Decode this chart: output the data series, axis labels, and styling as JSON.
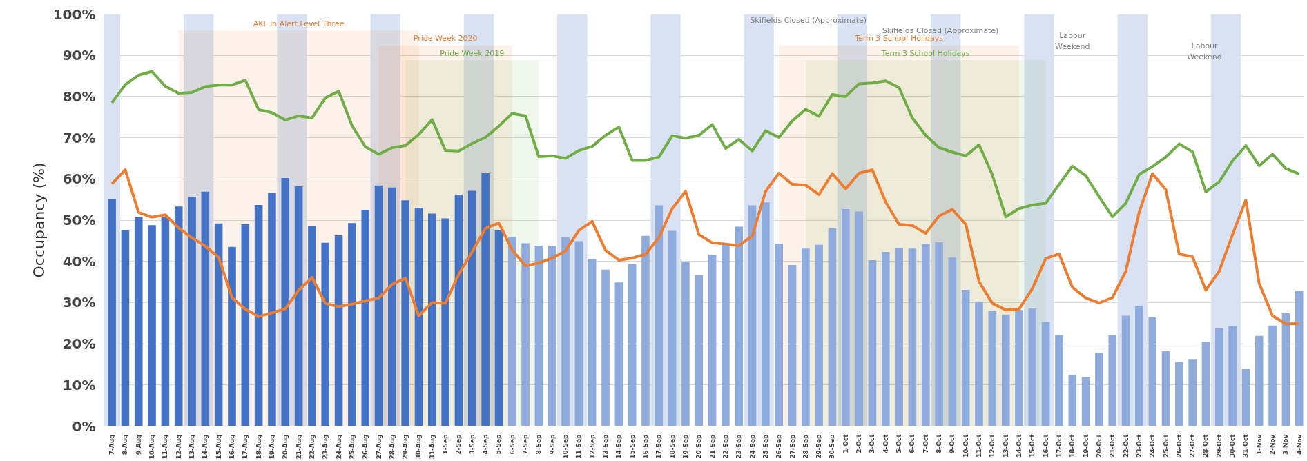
{
  "chart_data": {
    "type": "bar",
    "ylabel": "Occupancy (%)",
    "categories": [
      "7-Aug",
      "8-Aug",
      "9-Aug",
      "10-Aug",
      "11-Aug",
      "12-Aug",
      "13-Aug",
      "14-Aug",
      "15-Aug",
      "16-Aug",
      "17-Aug",
      "18-Aug",
      "19-Aug",
      "20-Aug",
      "21-Aug",
      "22-Aug",
      "23-Aug",
      "24-Aug",
      "25-Aug",
      "26-Aug",
      "27-Aug",
      "28-Aug",
      "29-Aug",
      "30-Aug",
      "31-Aug",
      "1-Sep",
      "2-Sep",
      "3-Sep",
      "4-Sep",
      "5-Sep",
      "6-Sep",
      "7-Sep",
      "8-Sep",
      "9-Sep",
      "10-Sep",
      "11-Sep",
      "12-Sep",
      "13-Sep",
      "14-Sep",
      "15-Sep",
      "16-Sep",
      "17-Sep",
      "18-Sep",
      "19-Sep",
      "20-Sep",
      "21-Sep",
      "22-Sep",
      "23-Sep",
      "24-Sep",
      "25-Sep",
      "26-Sep",
      "27-Sep",
      "28-Sep",
      "29-Sep",
      "30-Sep",
      "1-Oct",
      "2-Oct",
      "3-Oct",
      "4-Oct",
      "5-Oct",
      "6-Oct",
      "7-Oct",
      "8-Oct",
      "9-Oct",
      "10-Oct",
      "11-Oct",
      "12-Oct",
      "13-Oct",
      "14-Oct",
      "15-Oct",
      "16-Oct",
      "17-Oct",
      "18-Oct",
      "19-Oct",
      "20-Oct",
      "21-Oct",
      "22-Oct",
      "23-Oct",
      "24-Oct",
      "25-Oct",
      "26-Oct",
      "27-Oct",
      "28-Oct",
      "29-Oct",
      "30-Oct",
      "31-Oct",
      "1-Nov",
      "2-Nov",
      "3-Nov",
      "4-Nov"
    ],
    "series": [
      {
        "colors": [
          "#4472c4",
          "#4472c4",
          "#4472c4",
          "#4472c4",
          "#4472c4",
          "#4472c4",
          "#4472c4",
          "#4472c4",
          "#4472c4",
          "#4472c4",
          "#4472c4",
          "#4472c4",
          "#4472c4",
          "#4472c4",
          "#4472c4",
          "#4472c4",
          "#4472c4",
          "#4472c4",
          "#4472c4",
          "#4472c4",
          "#4472c4",
          "#4472c4",
          "#4472c4",
          "#4472c4",
          "#4472c4",
          "#4472c4",
          "#4472c4",
          "#4472c4",
          "#4472c4",
          "#4472c4",
          "#8faadc",
          "#8faadc",
          "#8faadc",
          "#8faadc",
          "#8faadc",
          "#8faadc",
          "#8faadc",
          "#8faadc",
          "#8faadc",
          "#8faadc",
          "#8faadc",
          "#8faadc",
          "#8faadc",
          "#8faadc",
          "#8faadc",
          "#8faadc",
          "#8faadc",
          "#8faadc",
          "#8faadc",
          "#8faadc",
          "#8faadc",
          "#8faadc",
          "#8faadc",
          "#8faadc",
          "#8faadc",
          "#8faadc",
          "#8faadc",
          "#8faadc",
          "#8faadc",
          "#8faadc",
          "#8faadc",
          "#8faadc",
          "#8faadc",
          "#8faadc",
          "#8faadc",
          "#8faadc",
          "#8faadc",
          "#8faadc",
          "#8faadc",
          "#8faadc",
          "#8faadc",
          "#8faadc",
          "#8faadc",
          "#8faadc",
          "#8faadc",
          "#8faadc",
          "#8faadc",
          "#8faadc",
          "#8faadc",
          "#8faadc",
          "#8faadc",
          "#8faadc",
          "#8faadc",
          "#8faadc",
          "#8faadc",
          "#8faadc",
          "#8faadc",
          "#8faadc",
          "#8faadc",
          "#8faadc"
        ],
        "values": [
          55.2,
          47.5,
          50.8,
          48.8,
          50.8,
          53.3,
          55.7,
          56.9,
          49.2,
          43.5,
          49.0,
          53.7,
          56.6,
          60.2,
          58.2,
          48.5,
          44.5,
          46.3,
          49.3,
          52.5,
          58.4,
          57.9,
          54.8,
          53.0,
          51.6,
          50.4,
          56.2,
          57.1,
          61.4,
          47.5,
          46.0,
          44.4,
          43.8,
          43.7,
          45.8,
          44.9,
          40.6,
          38.0,
          34.9,
          39.3,
          46.2,
          53.6,
          47.4,
          39.9,
          36.7,
          41.6,
          44.0,
          48.4,
          53.6,
          54.3,
          44.3,
          39.1,
          43.1,
          44.0,
          48.0,
          52.7,
          52.1,
          40.3,
          42.3,
          43.3,
          43.1,
          44.2,
          44.6,
          40.9,
          33.1,
          30.2,
          28.0,
          27.1,
          28.2,
          28.5,
          25.3,
          22.1,
          12.5,
          11.9,
          17.8,
          22.1,
          26.8,
          29.2,
          26.4,
          18.2,
          15.5,
          16.3,
          20.4,
          23.7,
          24.3,
          13.9,
          21.9,
          24.4,
          27.4,
          32.9
        ]
      },
      {
        "type": "line",
        "color": "#ed7d31",
        "values": [
          58.8,
          62.2,
          51.9,
          50.7,
          51.3,
          48.1,
          45.7,
          43.7,
          41.0,
          31.2,
          28.4,
          26.6,
          27.5,
          28.5,
          33.0,
          36.1,
          29.8,
          29.0,
          29.6,
          30.4,
          31.1,
          34.4,
          35.9,
          26.8,
          30.0,
          29.8,
          36.9,
          42.3,
          48.0,
          49.3,
          42.8,
          38.9,
          39.6,
          40.8,
          42.5,
          47.5,
          49.7,
          42.7,
          40.3,
          40.8,
          41.7,
          45.8,
          52.8,
          57.0,
          46.5,
          44.5,
          44.2,
          43.8,
          46.2,
          57.0,
          61.4,
          58.7,
          58.5,
          56.2,
          61.3,
          57.6,
          61.4,
          62.2,
          54.4,
          49.0,
          48.7,
          46.8,
          51.0,
          52.6,
          49.0,
          35.1,
          29.8,
          28.2,
          28.4,
          33.4,
          40.7,
          41.8,
          33.7,
          31.1,
          29.9,
          31.2,
          37.6,
          51.9,
          61.3,
          57.4,
          41.8,
          41.1,
          33.0,
          37.6,
          46.5,
          54.9,
          34.6,
          26.8,
          24.8,
          24.9
        ]
      },
      {
        "type": "line",
        "color": "#70ad47",
        "values": [
          78.5,
          82.9,
          85.2,
          86.1,
          82.5,
          80.8,
          81.0,
          82.4,
          82.8,
          82.8,
          84.0,
          76.8,
          76.1,
          74.3,
          75.3,
          74.8,
          79.7,
          81.3,
          72.9,
          67.8,
          66.0,
          67.6,
          68.1,
          70.8,
          74.4,
          66.9,
          66.8,
          68.6,
          70.1,
          72.8,
          75.9,
          75.3,
          65.4,
          65.6,
          65.0,
          66.9,
          67.9,
          70.6,
          72.6,
          64.5,
          64.5,
          65.3,
          70.5,
          69.9,
          70.6,
          73.2,
          67.4,
          69.6,
          66.8,
          71.7,
          70.1,
          74.1,
          76.9,
          75.2,
          80.5,
          80.0,
          83.1,
          83.3,
          83.8,
          82.2,
          74.8,
          70.6,
          67.6,
          66.5,
          65.6,
          68.3,
          61.0,
          50.8,
          52.8,
          53.7,
          54.1,
          58.7,
          63.1,
          60.8,
          55.7,
          50.8,
          54.1,
          61.1,
          63.0,
          65.3,
          68.5,
          66.6,
          56.9,
          59.3,
          64.4,
          68.1,
          63.2,
          66.0,
          62.5,
          61.2
        ]
      }
    ],
    "ylim": [
      0,
      100
    ],
    "yticks": [
      {
        "value": 0,
        "label": "0%"
      },
      {
        "value": 10,
        "label": "10%"
      },
      {
        "value": 20,
        "label": "20%"
      },
      {
        "value": 30,
        "label": "30%"
      },
      {
        "value": 40,
        "label": "40%"
      },
      {
        "value": 50,
        "label": "50%"
      },
      {
        "value": 60,
        "label": "60%"
      },
      {
        "value": 70,
        "label": "70%"
      },
      {
        "value": 80,
        "label": "80%"
      },
      {
        "value": 90,
        "label": "90%"
      },
      {
        "value": 100,
        "label": "100%"
      }
    ],
    "grid": "y",
    "line_style": "solid",
    "marker": "none",
    "bands": [
      {
        "axis": "x",
        "from": "7-Aug",
        "to": "7-Aug",
        "color": "#d9e2f3"
      },
      {
        "axis": "x",
        "from": "13-Aug",
        "to": "14-Aug",
        "color": "#d9e2f3"
      },
      {
        "axis": "x",
        "from": "20-Aug",
        "to": "21-Aug",
        "color": "#d9e2f3"
      },
      {
        "axis": "x",
        "from": "27-Aug",
        "to": "28-Aug",
        "color": "#d9e2f3"
      },
      {
        "axis": "x",
        "from": "3-Sep",
        "to": "4-Sep",
        "color": "#d9e2f3"
      },
      {
        "axis": "x",
        "from": "10-Sep",
        "to": "11-Sep",
        "color": "#d9e2f3"
      },
      {
        "axis": "x",
        "from": "17-Sep",
        "to": "18-Sep",
        "color": "#d9e2f3"
      },
      {
        "axis": "x",
        "from": "24-Sep",
        "to": "25-Sep",
        "color": "#d9e2f3"
      },
      {
        "axis": "x",
        "from": "1-Oct",
        "to": "2-Oct",
        "color": "#d9e2f3"
      },
      {
        "axis": "x",
        "from": "8-Oct",
        "to": "9-Oct",
        "color": "#d9e2f3"
      },
      {
        "axis": "x",
        "from": "15-Oct",
        "to": "16-Oct",
        "color": "#d9e2f3"
      },
      {
        "axis": "x",
        "from": "22-Oct",
        "to": "23-Oct",
        "color": "#d9e2f3"
      },
      {
        "axis": "x",
        "from": "29-Oct",
        "to": "30-Oct",
        "color": "#d9e2f3"
      },
      {
        "axis": "x",
        "from": "29-Aug",
        "to": "8-Sep",
        "label": "Pride Week 2019",
        "color": "#70ad47"
      },
      {
        "axis": "x",
        "from": "27-Aug",
        "to": "6-Sep",
        "label": "Pride Week 2020",
        "color": "#ed7d31"
      },
      {
        "axis": "x",
        "from": "12-Aug",
        "to": "30-Aug",
        "label": "AKL in Alert Level Three",
        "color": "#ed7d31"
      },
      {
        "axis": "x",
        "from": "28-Sep",
        "to": "16-Oct",
        "label": "Term 3 School Holidays",
        "color": "#70ad47"
      },
      {
        "axis": "x",
        "from": "26-Sep",
        "to": "14-Oct",
        "label": "Term 3 School Holidays",
        "color": "#ed7d31"
      }
    ],
    "annotations": [
      "Skifields Closed (Approximate)",
      "Skifields Closed (Approximate)",
      "Labour\nWeekend",
      "Labour\nWeekend"
    ]
  }
}
